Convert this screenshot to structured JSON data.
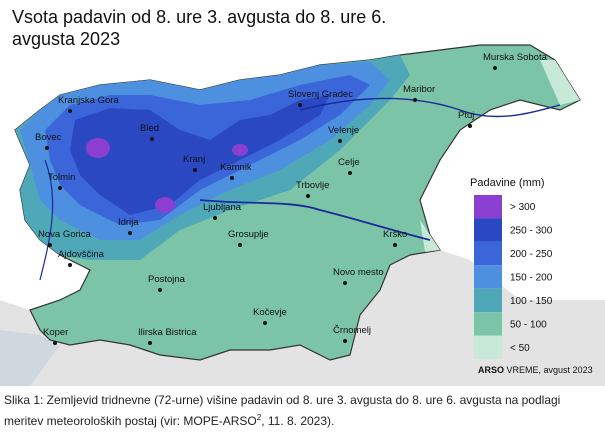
{
  "map": {
    "title": "Vsota padavin od 8. ure 3. avgusta do 8. ure 6. avgusta 2023",
    "cities": [
      "Kranjska Gora",
      "Bovec",
      "Bled",
      "Tolmin",
      "Kranj",
      "Kamnik",
      "Ljubljana",
      "Idrija",
      "Nova Gorica",
      "Ajdovščina",
      "Grosuplje",
      "Postojna",
      "Ilirska Bistrica",
      "Koper",
      "Kočevje",
      "Črnomelj",
      "Novo mesto",
      "Krško",
      "Trbovlje",
      "Celje",
      "Velenje",
      "Slovenj Gradec",
      "Maribor",
      "Ptuj",
      "Murska Sobota"
    ],
    "legend": {
      "title": "Padavine (mm)",
      "items": [
        {
          "label": "> 300",
          "color": "#8b3fd0"
        },
        {
          "label": "250 - 300",
          "color": "#2a48c2"
        },
        {
          "label": "200 - 250",
          "color": "#3a66d9"
        },
        {
          "label": "150 - 200",
          "color": "#4d90e0"
        },
        {
          "label": "100 - 150",
          "color": "#4fa8b8"
        },
        {
          "label": "50 - 100",
          "color": "#7cc4a7"
        },
        {
          "label": "< 50",
          "color": "#c9e9d8"
        }
      ]
    },
    "credit_brand": "ARSO",
    "credit_text": "VREME, avgust 2023",
    "caption": {
      "before": "Slika 1: Zemljevid tridnevne (72-urne) višine padavin od 8. ure 3. avgusta do 8. ure 6. avgusta na podlagi meritev meteoroloških postaj (vir: MOPE-ARSO",
      "sup": "2",
      "after": ", 11. 8. 2023)."
    }
  }
}
